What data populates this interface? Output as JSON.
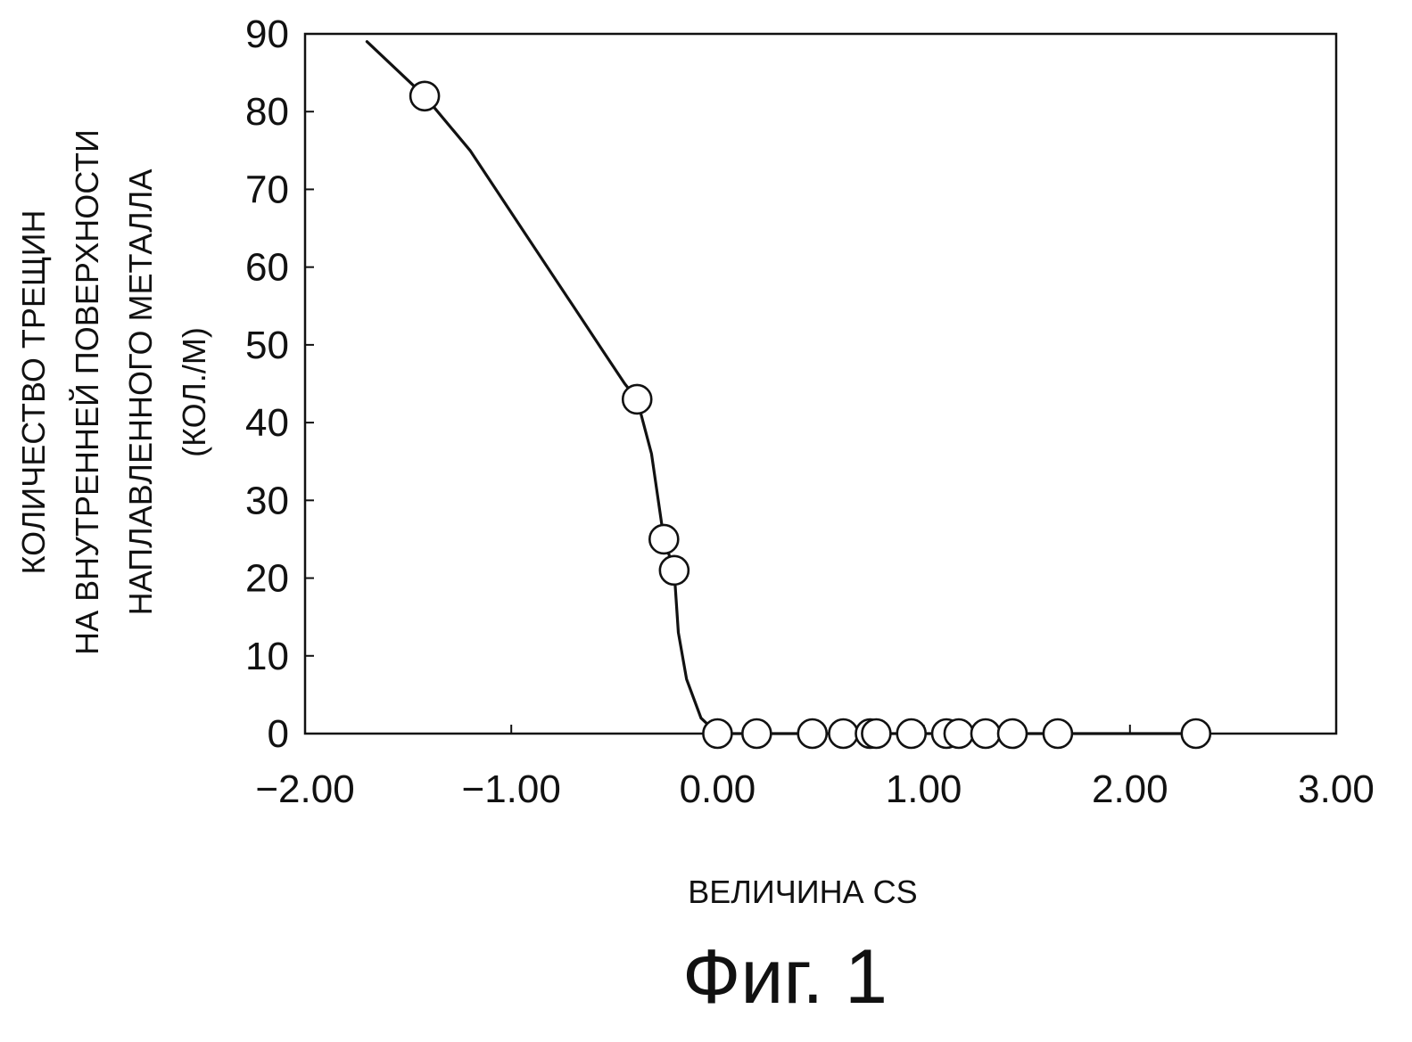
{
  "chart_data": {
    "type": "scatter",
    "xlabel": "ВЕЛИЧИНА CS",
    "ylabel_lines": [
      "КОЛИЧЕСТВО ТРЕЩИН",
      "НА ВНУТРЕННЕЙ ПОВЕРХНОСТИ",
      "НАПЛАВЛЕННОГО МЕТАЛЛА",
      "(КОЛ./М)"
    ],
    "caption": "Фиг. 1",
    "xlim": [
      -2.0,
      3.0
    ],
    "ylim": [
      0,
      90
    ],
    "x_ticks": [
      -2.0,
      -1.0,
      0.0,
      1.0,
      2.0,
      3.0
    ],
    "x_tick_labels": [
      "−2.00",
      "−1.00",
      "0.00",
      "1.00",
      "2.00",
      "3.00"
    ],
    "y_ticks": [
      0,
      10,
      20,
      30,
      40,
      50,
      60,
      70,
      80,
      90
    ],
    "y_tick_labels": [
      "0",
      "10",
      "20",
      "30",
      "40",
      "50",
      "60",
      "70",
      "80",
      "90"
    ],
    "grid": false,
    "points": [
      {
        "x": -1.42,
        "y": 82
      },
      {
        "x": -0.39,
        "y": 43
      },
      {
        "x": -0.26,
        "y": 25
      },
      {
        "x": -0.21,
        "y": 21
      },
      {
        "x": 0.0,
        "y": 0
      },
      {
        "x": 0.19,
        "y": 0
      },
      {
        "x": 0.46,
        "y": 0
      },
      {
        "x": 0.61,
        "y": 0
      },
      {
        "x": 0.74,
        "y": 0
      },
      {
        "x": 0.77,
        "y": 0
      },
      {
        "x": 0.94,
        "y": 0
      },
      {
        "x": 1.11,
        "y": 0
      },
      {
        "x": 1.17,
        "y": 0
      },
      {
        "x": 1.3,
        "y": 0
      },
      {
        "x": 1.43,
        "y": 0
      },
      {
        "x": 1.65,
        "y": 0
      },
      {
        "x": 2.32,
        "y": 0
      }
    ],
    "curve": [
      {
        "x": -1.7,
        "y": 89
      },
      {
        "x": -1.42,
        "y": 82
      },
      {
        "x": -1.2,
        "y": 75
      },
      {
        "x": -0.95,
        "y": 65
      },
      {
        "x": -0.7,
        "y": 55
      },
      {
        "x": -0.55,
        "y": 49
      },
      {
        "x": -0.45,
        "y": 45
      },
      {
        "x": -0.39,
        "y": 43
      },
      {
        "x": -0.32,
        "y": 36
      },
      {
        "x": -0.26,
        "y": 25
      },
      {
        "x": -0.21,
        "y": 21
      },
      {
        "x": -0.19,
        "y": 13
      },
      {
        "x": -0.15,
        "y": 7
      },
      {
        "x": -0.08,
        "y": 2
      },
      {
        "x": 0.0,
        "y": 0
      },
      {
        "x": 0.5,
        "y": 0
      },
      {
        "x": 1.0,
        "y": 0
      },
      {
        "x": 1.65,
        "y": 0
      },
      {
        "x": 2.32,
        "y": 0
      }
    ],
    "style": {
      "line_color": "#111111",
      "marker_fill": "#ffffff",
      "marker_stroke": "#111111"
    }
  }
}
